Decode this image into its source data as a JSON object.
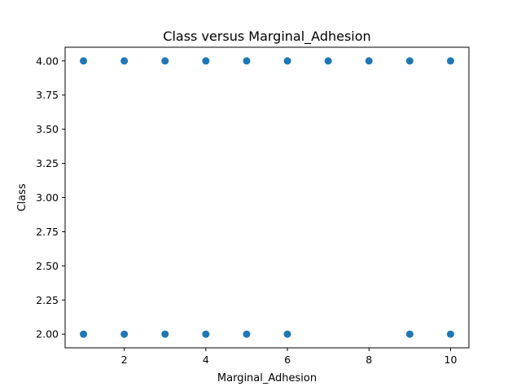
{
  "chart_data": {
    "type": "scatter",
    "title": "Class versus Marginal_Adhesion",
    "xlabel": "Marginal_Adhesion",
    "ylabel": "Class",
    "xlim": [
      0.55,
      10.45
    ],
    "ylim": [
      1.9,
      4.1
    ],
    "xticks": [
      {
        "value": 2,
        "label": "2"
      },
      {
        "value": 4,
        "label": "4"
      },
      {
        "value": 6,
        "label": "6"
      },
      {
        "value": 8,
        "label": "8"
      },
      {
        "value": 10,
        "label": "10"
      }
    ],
    "yticks": [
      {
        "value": 2.0,
        "label": "2.00"
      },
      {
        "value": 2.25,
        "label": "2.25"
      },
      {
        "value": 2.5,
        "label": "2.50"
      },
      {
        "value": 2.75,
        "label": "2.75"
      },
      {
        "value": 3.0,
        "label": "3.00"
      },
      {
        "value": 3.25,
        "label": "3.25"
      },
      {
        "value": 3.5,
        "label": "3.50"
      },
      {
        "value": 3.75,
        "label": "3.75"
      },
      {
        "value": 4.0,
        "label": "4.00"
      }
    ],
    "grid": false,
    "legend": "none",
    "color": "#1f77b4",
    "points": [
      {
        "x": 1,
        "y": 4
      },
      {
        "x": 2,
        "y": 4
      },
      {
        "x": 3,
        "y": 4
      },
      {
        "x": 4,
        "y": 4
      },
      {
        "x": 5,
        "y": 4
      },
      {
        "x": 6,
        "y": 4
      },
      {
        "x": 7,
        "y": 4
      },
      {
        "x": 8,
        "y": 4
      },
      {
        "x": 9,
        "y": 4
      },
      {
        "x": 10,
        "y": 4
      },
      {
        "x": 1,
        "y": 2
      },
      {
        "x": 2,
        "y": 2
      },
      {
        "x": 3,
        "y": 2
      },
      {
        "x": 4,
        "y": 2
      },
      {
        "x": 5,
        "y": 2
      },
      {
        "x": 6,
        "y": 2
      },
      {
        "x": 9,
        "y": 2
      },
      {
        "x": 10,
        "y": 2
      }
    ]
  }
}
